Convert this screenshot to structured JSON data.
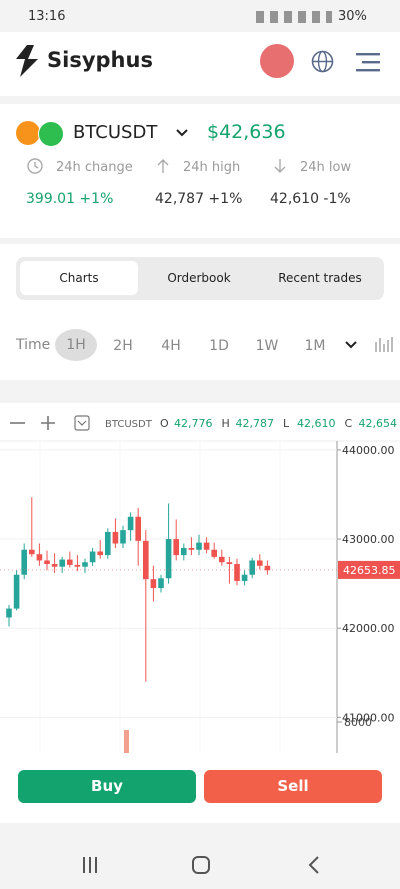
{
  "status": {
    "time": "13:16",
    "battery": "30%"
  },
  "header": {
    "brand": "Sisyphus"
  },
  "ticker": {
    "symbol": "BTCUSDT",
    "price": "$42,636",
    "stats": [
      {
        "label": "24h change",
        "value": "399.01 +1%"
      },
      {
        "label": "24h high",
        "value": "42,787 +1%"
      },
      {
        "label": "24h low",
        "value": "42,610 -1%"
      }
    ]
  },
  "tabs": [
    "Charts",
    "Orderbook",
    "Recent trades"
  ],
  "intervals": {
    "label": "Time",
    "options": [
      "1H",
      "2H",
      "4H",
      "1D",
      "1W",
      "1M"
    ]
  },
  "chart": {
    "symbol": "BTCUSDT",
    "ohlc": [
      {
        "key": "O",
        "value": "42,776"
      },
      {
        "key": "H",
        "value": "42,787"
      },
      {
        "key": "L",
        "value": "42,610"
      },
      {
        "key": "C",
        "value": "42,654"
      }
    ],
    "ylim": [
      40600,
      44100
    ],
    "yticks": [
      {
        "value": 44000,
        "label": "44000.00"
      },
      {
        "value": 43000,
        "label": "43000.00"
      },
      {
        "value": 42000,
        "label": "42000.00"
      },
      {
        "value": 41000,
        "label": "41000.00"
      }
    ],
    "last_price": 42653.85,
    "volume_tick": "8000",
    "candles": [
      {
        "o": 42120,
        "h": 42260,
        "l": 42020,
        "c": 42220
      },
      {
        "o": 42220,
        "h": 42650,
        "l": 42200,
        "c": 42600
      },
      {
        "o": 42600,
        "h": 42950,
        "l": 42550,
        "c": 42880
      },
      {
        "o": 42880,
        "h": 43470,
        "l": 42800,
        "c": 42830
      },
      {
        "o": 42830,
        "h": 42950,
        "l": 42700,
        "c": 42760
      },
      {
        "o": 42760,
        "h": 42870,
        "l": 42650,
        "c": 42720
      },
      {
        "o": 42720,
        "h": 42840,
        "l": 42620,
        "c": 42690
      },
      {
        "o": 42690,
        "h": 42800,
        "l": 42620,
        "c": 42770
      },
      {
        "o": 42770,
        "h": 42860,
        "l": 42680,
        "c": 42710
      },
      {
        "o": 42710,
        "h": 42820,
        "l": 42640,
        "c": 42690
      },
      {
        "o": 42690,
        "h": 42780,
        "l": 42620,
        "c": 42740
      },
      {
        "o": 42740,
        "h": 42900,
        "l": 42700,
        "c": 42860
      },
      {
        "o": 42860,
        "h": 42990,
        "l": 42780,
        "c": 42820
      },
      {
        "o": 42820,
        "h": 43120,
        "l": 42780,
        "c": 43080
      },
      {
        "o": 43080,
        "h": 43230,
        "l": 42900,
        "c": 42950
      },
      {
        "o": 42950,
        "h": 43150,
        "l": 42900,
        "c": 43100
      },
      {
        "o": 43100,
        "h": 43300,
        "l": 42980,
        "c": 43250
      },
      {
        "o": 43250,
        "h": 43350,
        "l": 42700,
        "c": 42980
      },
      {
        "o": 42980,
        "h": 43100,
        "l": 41400,
        "c": 42550
      },
      {
        "o": 42550,
        "h": 42700,
        "l": 42300,
        "c": 42450
      },
      {
        "o": 42450,
        "h": 42600,
        "l": 42400,
        "c": 42560
      },
      {
        "o": 42560,
        "h": 43400,
        "l": 42500,
        "c": 43000
      },
      {
        "o": 43000,
        "h": 43220,
        "l": 42760,
        "c": 42820
      },
      {
        "o": 42820,
        "h": 42950,
        "l": 42760,
        "c": 42900
      },
      {
        "o": 42900,
        "h": 43020,
        "l": 42820,
        "c": 42880
      },
      {
        "o": 42880,
        "h": 43050,
        "l": 42820,
        "c": 42960
      },
      {
        "o": 42960,
        "h": 43020,
        "l": 42840,
        "c": 42880
      },
      {
        "o": 42880,
        "h": 42960,
        "l": 42780,
        "c": 42800
      },
      {
        "o": 42800,
        "h": 42880,
        "l": 42700,
        "c": 42740
      },
      {
        "o": 42740,
        "h": 42800,
        "l": 42500,
        "c": 42720
      },
      {
        "o": 42720,
        "h": 42780,
        "l": 42480,
        "c": 42530
      },
      {
        "o": 42530,
        "h": 42650,
        "l": 42480,
        "c": 42600
      },
      {
        "o": 42600,
        "h": 42790,
        "l": 42560,
        "c": 42760
      },
      {
        "o": 42760,
        "h": 42830,
        "l": 42660,
        "c": 42700
      },
      {
        "o": 42700,
        "h": 42760,
        "l": 42600,
        "c": 42650
      }
    ]
  },
  "actions": {
    "buy": "Buy",
    "sell": "Sell"
  }
}
